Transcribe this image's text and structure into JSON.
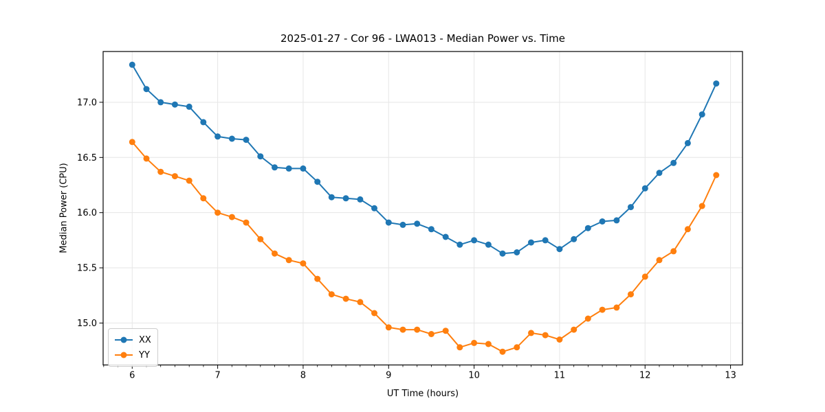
{
  "chart_data": {
    "type": "line",
    "title": "2025-01-27 - Cor 96 - LWA013 - Median Power vs. Time",
    "xlabel": "UT Time (hours)",
    "ylabel": "Median Power (CPU)",
    "xlim": [
      5.66,
      13.14
    ],
    "ylim": [
      14.62,
      17.46
    ],
    "xticks": [
      6,
      7,
      8,
      9,
      10,
      11,
      12,
      13
    ],
    "xtick_labels": [
      "6",
      "7",
      "8",
      "9",
      "10",
      "11",
      "12",
      "13"
    ],
    "yticks": [
      15.0,
      15.5,
      16.0,
      16.5,
      17.0
    ],
    "ytick_labels": [
      "15.0",
      "15.5",
      "16.0",
      "16.5",
      "17.0"
    ],
    "grid": true,
    "grid_color": "#e6e6e6",
    "x_minor_per_major": 6,
    "legend": {
      "position": "lower left",
      "entries": [
        "XX",
        "YY"
      ]
    },
    "x": [
      6.0,
      6.167,
      6.333,
      6.5,
      6.667,
      6.833,
      7.0,
      7.167,
      7.333,
      7.5,
      7.667,
      7.833,
      8.0,
      8.167,
      8.333,
      8.5,
      8.667,
      8.833,
      9.0,
      9.167,
      9.333,
      9.5,
      9.667,
      9.833,
      10.0,
      10.167,
      10.333,
      10.5,
      10.667,
      10.833,
      11.0,
      11.167,
      11.333,
      11.5,
      11.667,
      11.833,
      12.0,
      12.167,
      12.333,
      12.5,
      12.667,
      12.833
    ],
    "series": [
      {
        "name": "XX",
        "color": "#1f77b4",
        "values": [
          17.34,
          17.12,
          17.0,
          16.98,
          16.96,
          16.82,
          16.69,
          16.67,
          16.66,
          16.51,
          16.41,
          16.4,
          16.4,
          16.28,
          16.14,
          16.13,
          16.12,
          16.04,
          15.91,
          15.89,
          15.9,
          15.85,
          15.78,
          15.71,
          15.75,
          15.71,
          15.63,
          15.64,
          15.73,
          15.75,
          15.67,
          15.76,
          15.86,
          15.92,
          15.93,
          16.05,
          16.22,
          16.36,
          16.45,
          16.63,
          16.89,
          17.17
        ]
      },
      {
        "name": "YY",
        "color": "#ff7f0e",
        "values": [
          16.64,
          16.49,
          16.37,
          16.33,
          16.29,
          16.13,
          16.0,
          15.96,
          15.91,
          15.76,
          15.63,
          15.57,
          15.54,
          15.4,
          15.26,
          15.22,
          15.19,
          15.09,
          14.96,
          14.94,
          14.94,
          14.9,
          14.93,
          14.78,
          14.82,
          14.81,
          14.74,
          14.78,
          14.91,
          14.89,
          14.85,
          14.94,
          15.04,
          15.12,
          15.14,
          15.26,
          15.42,
          15.57,
          15.65,
          15.85,
          16.06,
          16.34
        ]
      }
    ]
  }
}
